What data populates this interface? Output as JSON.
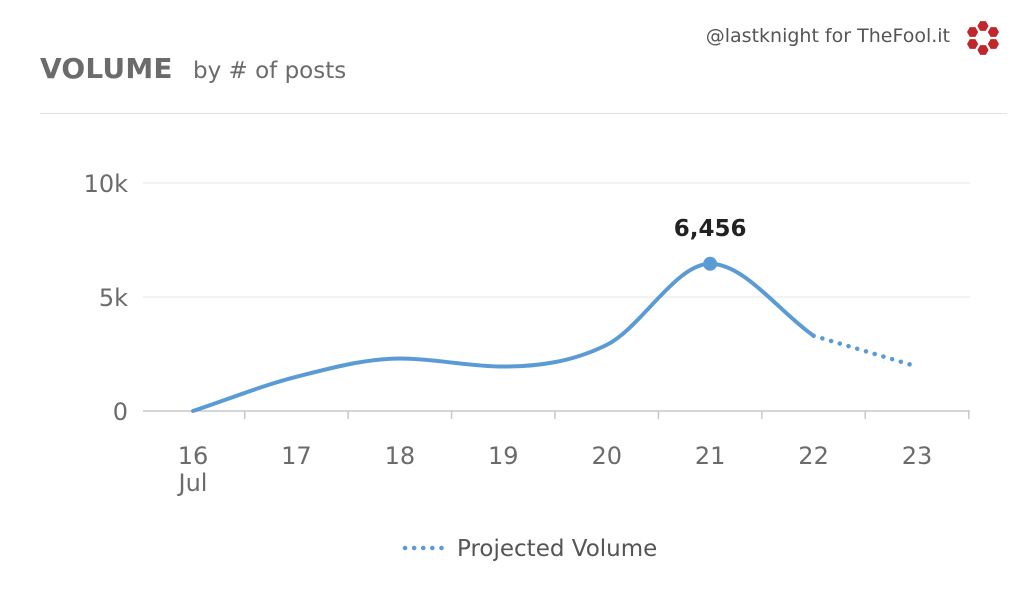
{
  "header": {
    "title": "VOLUME",
    "subtitle": "by # of posts",
    "credit": "@lastknight for TheFool.it",
    "logo_icon": "hexagon-cluster-logo",
    "logo_color": "#c0272d"
  },
  "chart_data": {
    "type": "line",
    "title": "VOLUME",
    "subtitle": "by # of posts",
    "x_month_label": "Jul",
    "categories": [
      "16",
      "17",
      "18",
      "19",
      "20",
      "21",
      "22",
      "23"
    ],
    "yticks": [
      {
        "value": 0,
        "label": "0"
      },
      {
        "value": 5000,
        "label": "5k"
      },
      {
        "value": 10000,
        "label": "10k"
      }
    ],
    "ylim": [
      0,
      10000
    ],
    "grid": true,
    "series": [
      {
        "style": "solid",
        "color": "#5b9bd5",
        "x": [
          "16",
          "17",
          "18",
          "19",
          "20",
          "21",
          "22"
        ],
        "values": [
          0,
          1500,
          2300,
          1950,
          2900,
          6456,
          3300
        ]
      },
      {
        "name": "Projected Volume",
        "style": "dotted",
        "color": "#5b9bd5",
        "x": [
          "22",
          "23"
        ],
        "values": [
          3300,
          1950
        ]
      }
    ],
    "annotations": [
      {
        "x": "21",
        "value": 6456,
        "label": "6,456"
      }
    ],
    "legend": {
      "position": "bottom-center",
      "entries": [
        "Projected Volume"
      ]
    }
  }
}
